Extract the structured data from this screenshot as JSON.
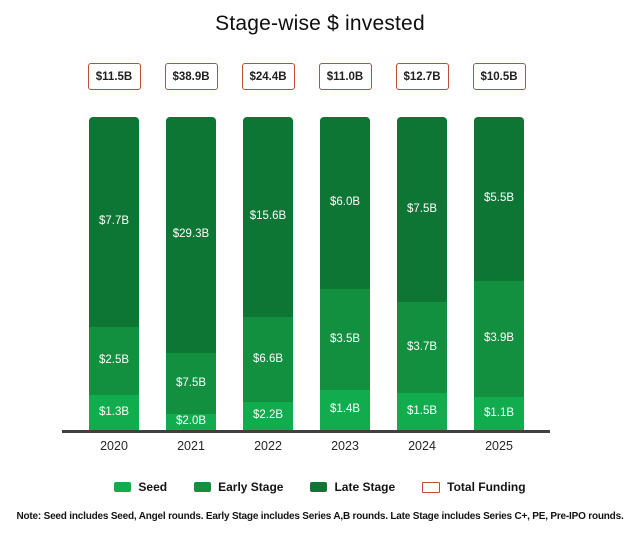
{
  "chart_data": {
    "type": "bar",
    "variant": "100-percent-stacked-column",
    "title": "Stage-wise $ invested",
    "categories": [
      "2020",
      "2021",
      "2022",
      "2023",
      "2024",
      "2025"
    ],
    "total_labels": [
      "$11.5B",
      "$38.9B",
      "$24.4B",
      "$11.0B",
      "$12.7B",
      "$10.5B"
    ],
    "totals_billions": [
      11.5,
      38.9,
      24.4,
      11.0,
      12.7,
      10.5
    ],
    "series": [
      {
        "name": "Seed",
        "color": "#10AC4D",
        "values_billions": [
          1.3,
          2.0,
          2.2,
          1.4,
          1.5,
          1.1
        ],
        "labels": [
          "$1.3B",
          "$2.0B",
          "$2.2B",
          "$1.4B",
          "$1.5B",
          "$1.1B"
        ]
      },
      {
        "name": "Early Stage",
        "color": "#128F3F",
        "values_billions": [
          2.5,
          7.5,
          6.6,
          3.5,
          3.7,
          3.9
        ],
        "labels": [
          "$2.5B",
          "$7.5B",
          "$6.6B",
          "$3.5B",
          "$3.7B",
          "$3.9B"
        ]
      },
      {
        "name": "Late Stage",
        "color": "#0D7634",
        "values_billions": [
          7.7,
          29.3,
          15.6,
          6.0,
          7.5,
          5.5
        ],
        "labels": [
          "$7.7B",
          "$29.3B",
          "$15.6B",
          "$6.0B",
          "$7.5B",
          "$5.5B"
        ]
      }
    ],
    "legend": {
      "entries": [
        "Seed",
        "Early Stage",
        "Late Stage",
        "Total Funding"
      ],
      "total_funding_label": "Total Funding",
      "total_funding_border_color": "#BE4B36",
      "position": "bottom"
    },
    "axes": {
      "y_axis_visible": false,
      "gridlines": false,
      "x_axis_line_color": "#404040"
    },
    "note": "Note: Seed includes Seed, Angel rounds. Early Stage includes Series A,B rounds. Late Stage includes Series C+, PE, Pre-IPO rounds."
  }
}
